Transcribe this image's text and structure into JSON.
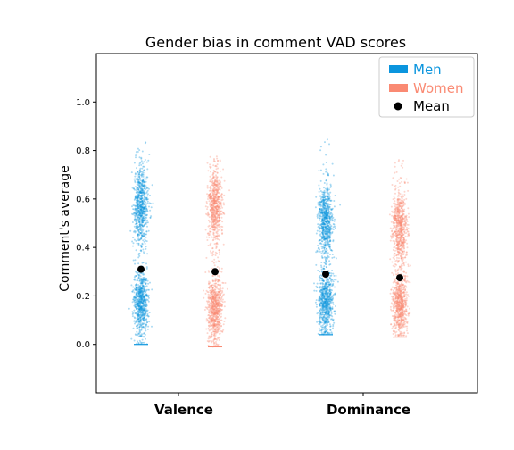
{
  "chart_data": {
    "type": "scatter",
    "title": "Gender bias in comment VAD scores",
    "xlabel": "",
    "ylabel": "Comment's average",
    "ylim": [
      -0.2,
      1.2
    ],
    "yticks": [
      "0.0",
      "0.2",
      "0.4",
      "0.6",
      "0.8",
      "1.0"
    ],
    "categories": [
      "Valence",
      "Dominance"
    ],
    "grid": false,
    "legend_position": "top-right",
    "series": [
      {
        "name": "Men",
        "color": "#0b95de",
        "means": [
          0.31,
          0.29
        ],
        "distributions": [
          {
            "category": "Valence",
            "min": 0.0,
            "max": 0.85,
            "modes": [
              0.17,
              0.57
            ]
          },
          {
            "category": "Dominance",
            "min": 0.04,
            "max": 0.85,
            "modes": [
              0.18,
              0.51
            ]
          }
        ]
      },
      {
        "name": "Women",
        "color": "#fa8a73",
        "means": [
          0.3,
          0.275
        ],
        "distributions": [
          {
            "category": "Valence",
            "min": -0.01,
            "max": 0.78,
            "modes": [
              0.15,
              0.57
            ]
          },
          {
            "category": "Dominance",
            "min": 0.03,
            "max": 0.78,
            "modes": [
              0.17,
              0.48
            ]
          }
        ]
      }
    ],
    "legend": [
      "Men",
      "Women",
      "Mean"
    ],
    "mean_color": "#000000"
  }
}
